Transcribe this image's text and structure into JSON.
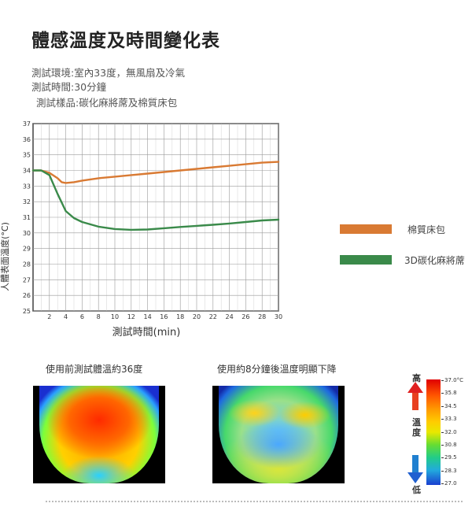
{
  "title": "體感溫度及時間變化表",
  "info": {
    "environment": "測試環境:室內33度，無風扇及冷氣",
    "duration": "測試時間:30分鐘",
    "sample": "測試樣品:碳化麻將蓆及棉質床包"
  },
  "chart_data": {
    "type": "line",
    "xlabel": "測試時間(min)",
    "ylabel": "人體表面溫度(°C)",
    "xlim": [
      0,
      30
    ],
    "ylim": [
      25,
      37
    ],
    "x_ticks": [
      2,
      4,
      6,
      8,
      10,
      12,
      14,
      16,
      18,
      20,
      22,
      24,
      26,
      28,
      30
    ],
    "y_ticks": [
      25,
      26,
      27,
      28,
      29,
      30,
      31,
      32,
      33,
      34,
      35,
      36,
      37
    ],
    "grid": true,
    "series": [
      {
        "name": "棉質床包",
        "color": "#d97a33",
        "x": [
          0,
          1,
          2,
          3,
          3.5,
          4,
          5,
          6,
          8,
          10,
          12,
          14,
          16,
          18,
          20,
          22,
          24,
          26,
          28,
          30
        ],
        "y": [
          34.0,
          34.0,
          33.85,
          33.5,
          33.25,
          33.2,
          33.25,
          33.35,
          33.5,
          33.6,
          33.7,
          33.8,
          33.9,
          34.0,
          34.1,
          34.2,
          34.3,
          34.4,
          34.5,
          34.55
        ]
      },
      {
        "name": "3D碳化麻將蓆",
        "color": "#3a8a4a",
        "x": [
          0,
          1,
          2,
          3,
          4,
          5,
          6,
          8,
          10,
          12,
          14,
          16,
          18,
          20,
          22,
          24,
          26,
          28,
          30
        ],
        "y": [
          34.0,
          34.0,
          33.7,
          32.5,
          31.4,
          30.95,
          30.7,
          30.4,
          30.25,
          30.2,
          30.22,
          30.3,
          30.38,
          30.45,
          30.52,
          30.6,
          30.7,
          30.8,
          30.85
        ]
      }
    ],
    "legend_position": "right"
  },
  "thermal": {
    "before_caption": "使用前測試體溫約36度",
    "after_caption": "使用約8分鐘後溫度明顯下降",
    "scale_ticks": [
      "37.0°C",
      "35.8",
      "34.5",
      "33.3",
      "32.0",
      "30.8",
      "29.5",
      "28.3",
      "27.0"
    ],
    "scale_high": "高",
    "scale_word": "溫度",
    "scale_low": "低"
  }
}
